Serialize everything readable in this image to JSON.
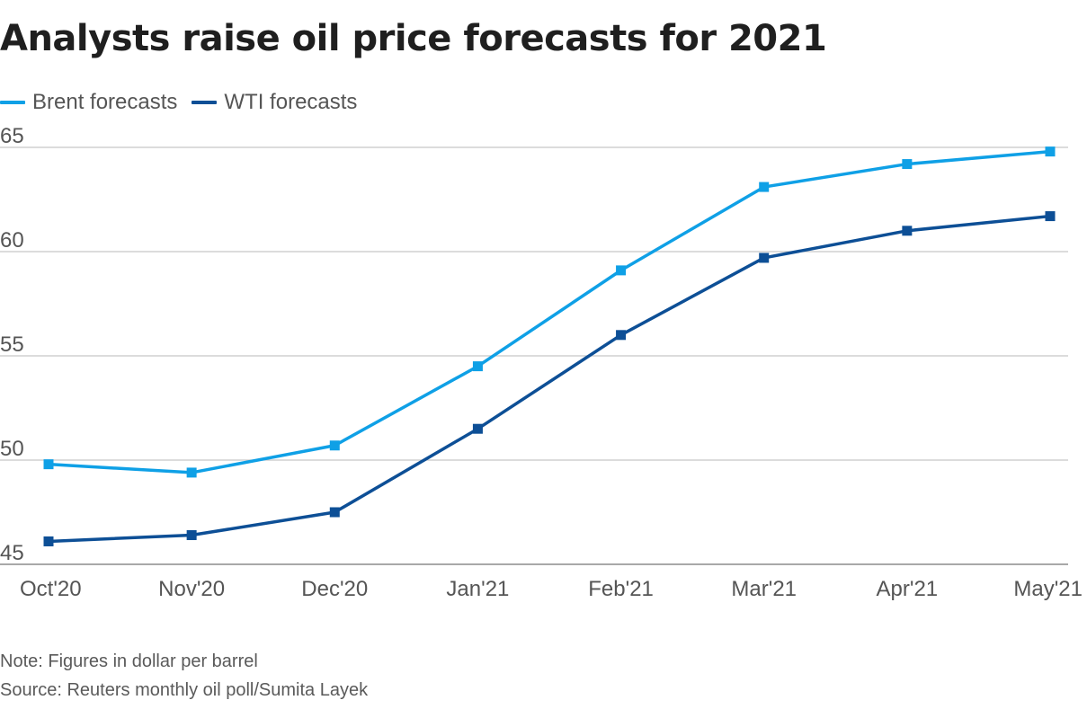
{
  "title": "Analysts raise oil price forecasts for 2021",
  "legend": [
    {
      "label": "Brent forecasts",
      "color": "#0fa0e6"
    },
    {
      "label": "WTI forecasts",
      "color": "#0d4f96"
    }
  ],
  "notes": {
    "note": "Note: Figures in dollar per barrel",
    "source": "Source: Reuters monthly oil poll/Sumita Layek"
  },
  "chart_data": {
    "type": "line",
    "title": "Analysts raise oil price forecasts for 2021",
    "xlabel": "",
    "ylabel": "",
    "categories": [
      "Oct'20",
      "Nov'20",
      "Dec'20",
      "Jan'21",
      "Feb'21",
      "Mar'21",
      "Apr'21",
      "May'21"
    ],
    "ylim": [
      45,
      65
    ],
    "yticks": [
      45,
      50,
      55,
      60,
      65
    ],
    "grid": true,
    "legend_position": "top-left",
    "series": [
      {
        "name": "Brent forecasts",
        "color": "#0fa0e6",
        "values": [
          49.8,
          49.4,
          50.7,
          54.5,
          59.1,
          63.1,
          64.2,
          64.8
        ]
      },
      {
        "name": "WTI forecasts",
        "color": "#0d4f96",
        "values": [
          46.1,
          46.4,
          47.5,
          51.5,
          56.0,
          59.7,
          61.0,
          61.7
        ]
      }
    ]
  }
}
